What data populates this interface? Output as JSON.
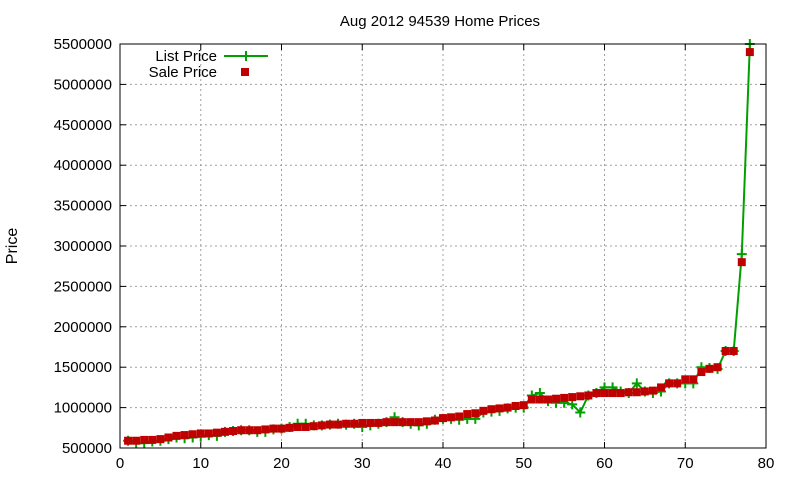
{
  "chart_data": {
    "type": "line",
    "title": "Aug 2012 94539 Home Prices",
    "xlabel": "",
    "ylabel": "Price",
    "xlim": [
      0,
      80
    ],
    "ylim": [
      500000,
      5500000
    ],
    "xticks": [
      0,
      10,
      20,
      30,
      40,
      50,
      60,
      70,
      80
    ],
    "yticks": [
      500000,
      1000000,
      1500000,
      2000000,
      2500000,
      3000000,
      3500000,
      4000000,
      4500000,
      5000000,
      5500000
    ],
    "grid": true,
    "legend_position": "top-left",
    "series": [
      {
        "name": "List Price",
        "style": "line+cross",
        "color": "#00a000",
        "x": [
          1,
          2,
          3,
          4,
          5,
          6,
          7,
          8,
          9,
          10,
          11,
          12,
          13,
          14,
          15,
          16,
          17,
          18,
          19,
          20,
          21,
          22,
          23,
          24,
          25,
          26,
          27,
          28,
          29,
          30,
          31,
          32,
          33,
          34,
          35,
          36,
          37,
          38,
          39,
          40,
          41,
          42,
          43,
          44,
          45,
          46,
          47,
          48,
          49,
          50,
          51,
          52,
          53,
          54,
          55,
          56,
          57,
          58,
          59,
          60,
          61,
          62,
          63,
          64,
          65,
          66,
          67,
          68,
          69,
          70,
          71,
          72,
          73,
          74,
          75,
          76,
          77,
          78
        ],
        "y": [
          590000,
          560000,
          560000,
          580000,
          590000,
          610000,
          630000,
          620000,
          630000,
          640000,
          660000,
          650000,
          700000,
          710000,
          720000,
          720000,
          700000,
          700000,
          730000,
          740000,
          760000,
          800000,
          800000,
          780000,
          780000,
          790000,
          800000,
          790000,
          800000,
          760000,
          780000,
          800000,
          820000,
          880000,
          820000,
          800000,
          780000,
          800000,
          850000,
          860000,
          860000,
          850000,
          860000,
          860000,
          940000,
          950000,
          960000,
          990000,
          1000000,
          1000000,
          1150000,
          1180000,
          1080000,
          1060000,
          1060000,
          1040000,
          940000,
          1150000,
          1180000,
          1250000,
          1250000,
          1200000,
          1180000,
          1300000,
          1200000,
          1180000,
          1200000,
          1300000,
          1300000,
          1300000,
          1300000,
          1500000,
          1490000,
          1480000,
          1700000,
          1700000,
          2900000,
          5500000
        ]
      },
      {
        "name": "Sale Price",
        "style": "square",
        "color": "#c00000",
        "x": [
          1,
          2,
          3,
          4,
          5,
          6,
          7,
          8,
          9,
          10,
          11,
          12,
          13,
          14,
          15,
          16,
          17,
          18,
          19,
          20,
          21,
          22,
          23,
          24,
          25,
          26,
          27,
          28,
          29,
          30,
          31,
          32,
          33,
          34,
          35,
          36,
          37,
          38,
          39,
          40,
          41,
          42,
          43,
          44,
          45,
          46,
          47,
          48,
          49,
          50,
          51,
          52,
          53,
          54,
          55,
          56,
          57,
          58,
          59,
          60,
          61,
          62,
          63,
          64,
          65,
          66,
          67,
          68,
          69,
          70,
          71,
          72,
          73,
          74,
          75,
          76,
          77,
          78
        ],
        "y": [
          590000,
          590000,
          600000,
          600000,
          610000,
          630000,
          650000,
          660000,
          670000,
          680000,
          680000,
          690000,
          700000,
          710000,
          720000,
          720000,
          720000,
          730000,
          740000,
          740000,
          750000,
          760000,
          760000,
          770000,
          780000,
          790000,
          790000,
          800000,
          800000,
          810000,
          810000,
          810000,
          820000,
          820000,
          820000,
          820000,
          820000,
          830000,
          840000,
          870000,
          880000,
          890000,
          920000,
          930000,
          960000,
          980000,
          990000,
          1000000,
          1020000,
          1030000,
          1100000,
          1100000,
          1100000,
          1110000,
          1120000,
          1130000,
          1140000,
          1150000,
          1180000,
          1180000,
          1180000,
          1180000,
          1190000,
          1190000,
          1200000,
          1210000,
          1250000,
          1300000,
          1300000,
          1350000,
          1350000,
          1440000,
          1480000,
          1500000,
          1700000,
          1700000,
          2800000,
          5400000
        ]
      }
    ]
  }
}
